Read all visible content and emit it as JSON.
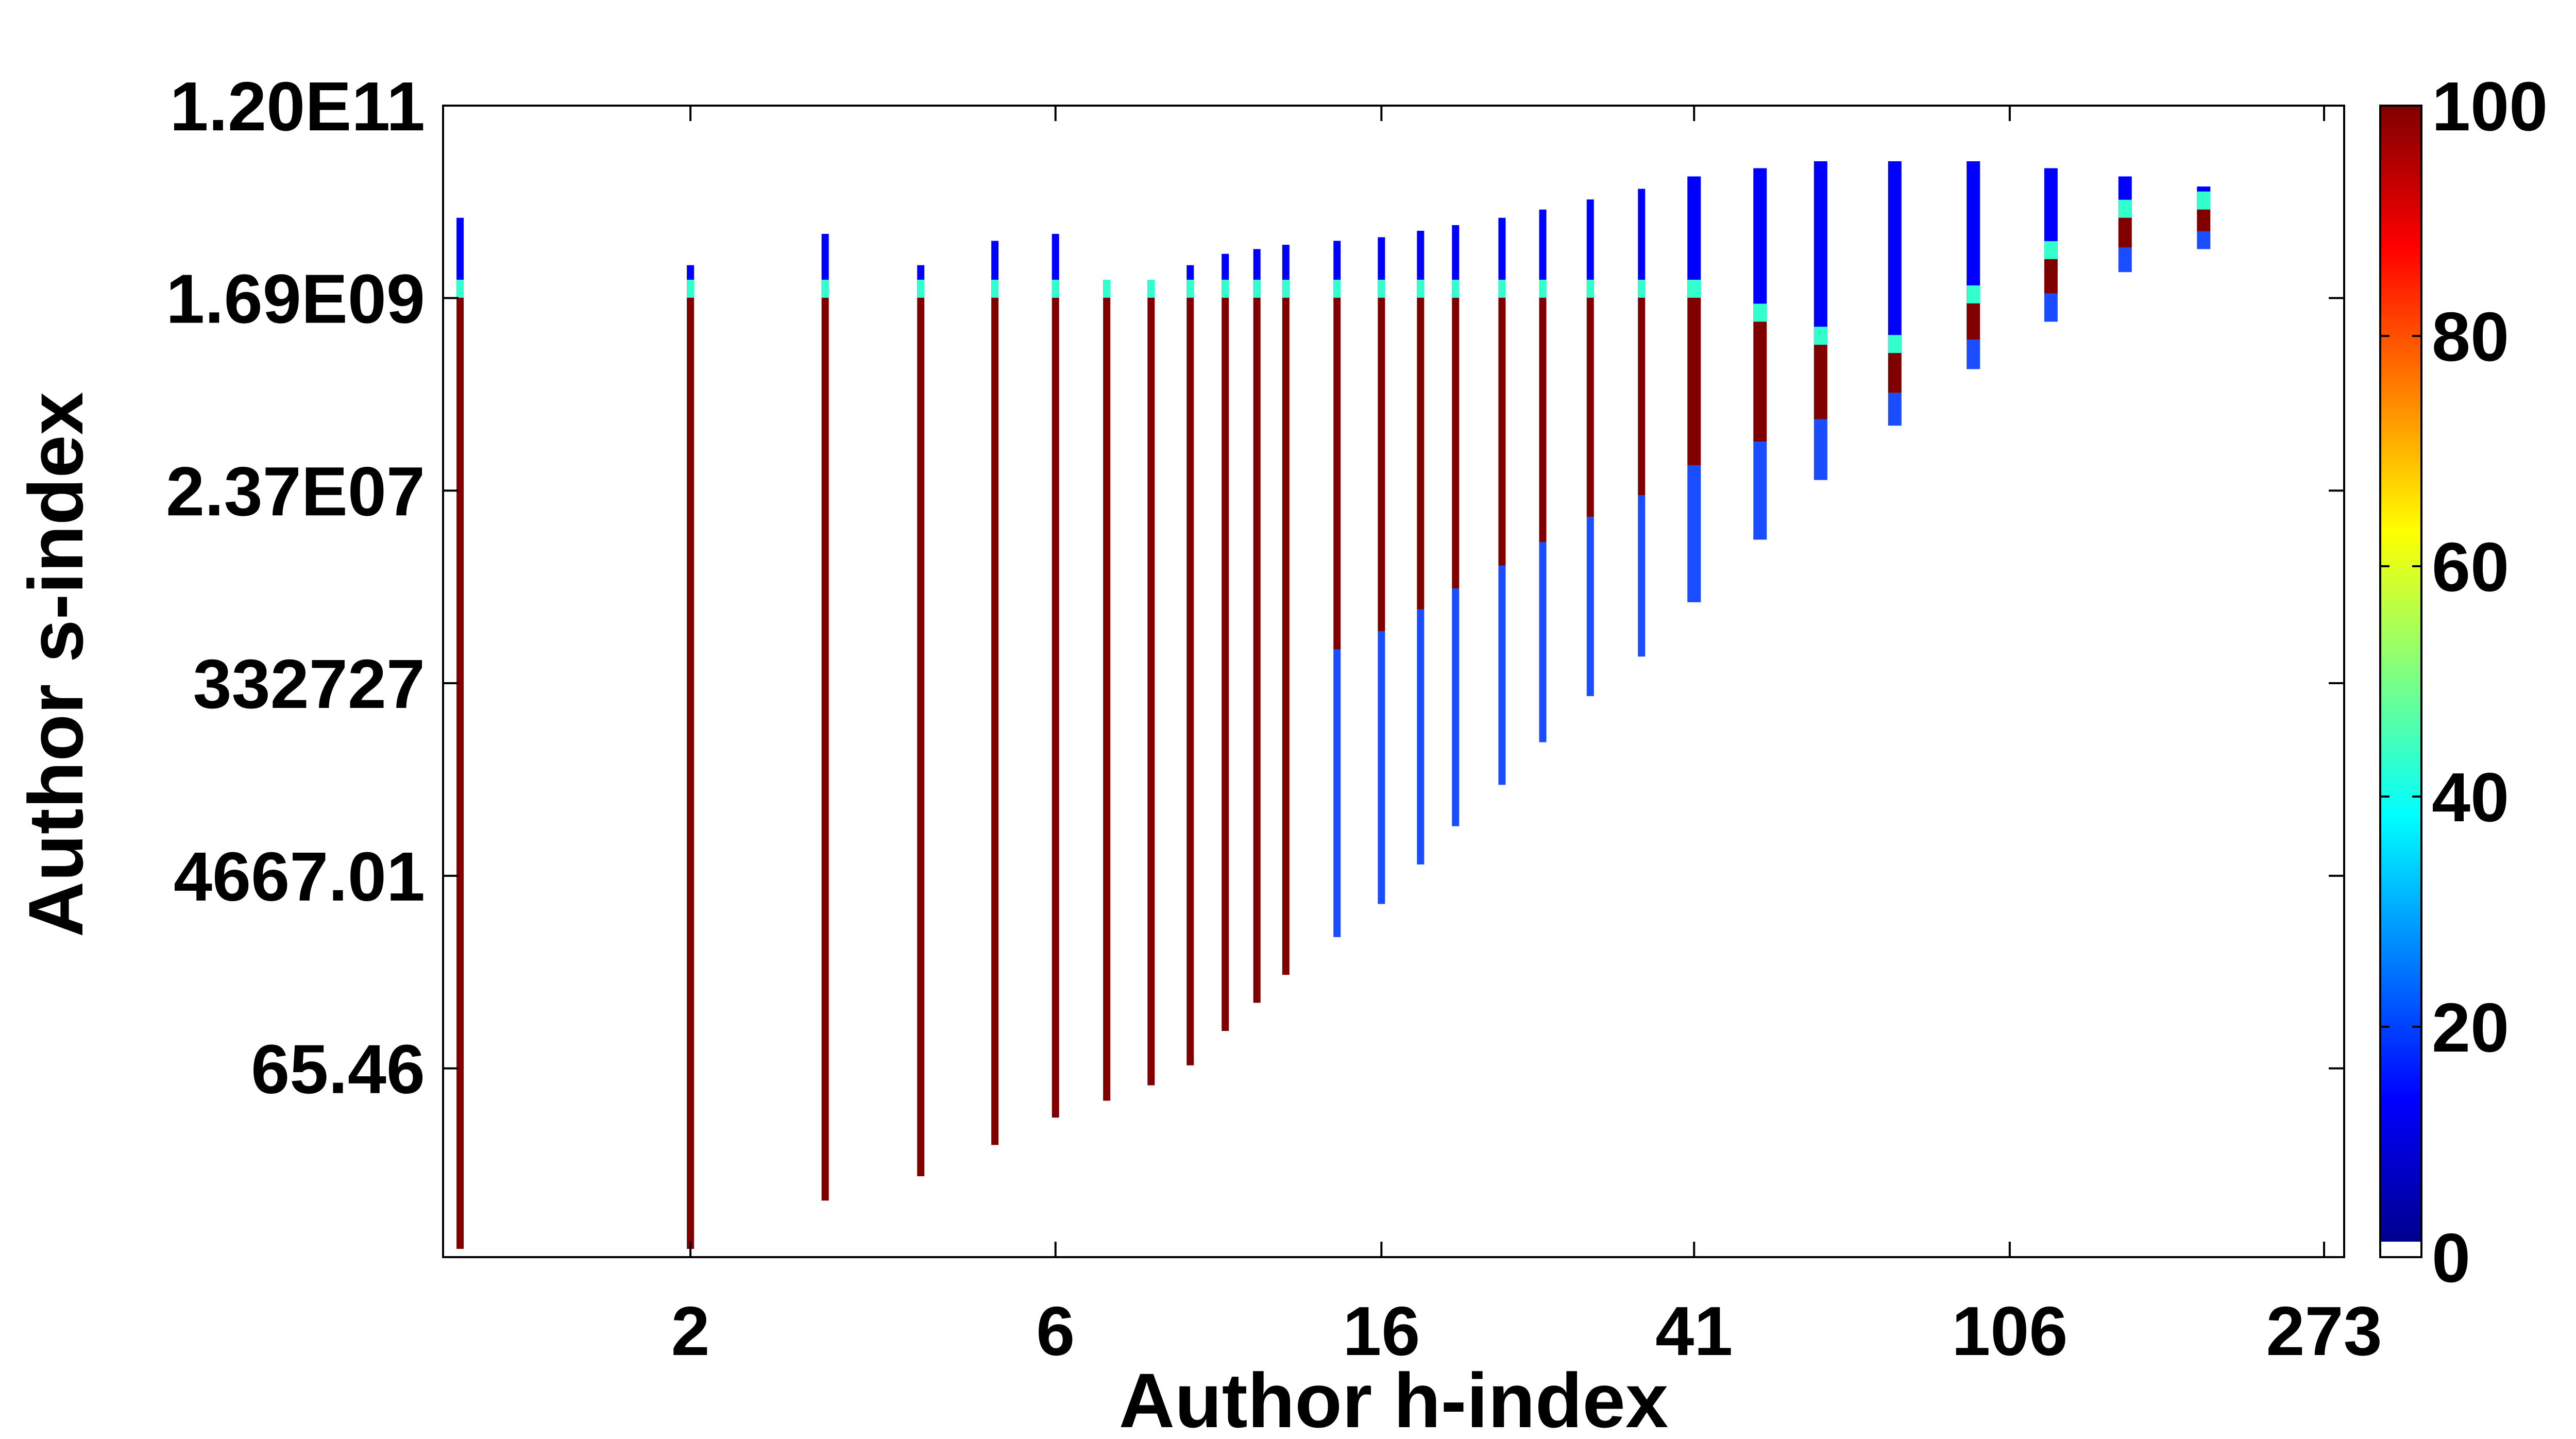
{
  "chart_data": {
    "type": "heatmap",
    "title": "",
    "xlabel": "Author h-index",
    "ylabel": "Author s-index",
    "x_scale": "log",
    "y_scale": "log",
    "x_ticks": [
      "2",
      "6",
      "16",
      "41",
      "106",
      "273"
    ],
    "y_ticks": [
      "1.20E11",
      "1.69E09",
      "2.37E07",
      "332727",
      "4667.01",
      "65.46"
    ],
    "colorbar": {
      "colormap": "jet",
      "min": 0,
      "max": 100,
      "ticks": [
        "100",
        "80",
        "60",
        "40",
        "20",
        "0"
      ],
      "zero_color": "#ffffff"
    },
    "columns": [
      {
        "h": 1,
        "s_min": 1.2,
        "s_dense_top": 1700000000.0,
        "s_max": 10000000000.0
      },
      {
        "h": 2,
        "s_min": 1.2,
        "s_dense_top": 1700000000.0,
        "s_max": 3500000000.0
      },
      {
        "h": 3,
        "s_min": 3.5,
        "s_dense_top": 1700000000.0,
        "s_max": 7000000000.0
      },
      {
        "h": 4,
        "s_min": 6,
        "s_dense_top": 1700000000.0,
        "s_max": 3500000000.0
      },
      {
        "h": 5,
        "s_min": 12,
        "s_dense_top": 1700000000.0,
        "s_max": 6000000000.0
      },
      {
        "h": 6,
        "s_min": 22,
        "s_dense_top": 1700000000.0,
        "s_max": 7000000000.0
      },
      {
        "h": 7,
        "s_min": 32,
        "s_dense_top": 1700000000.0,
        "s_max": 2500000000.0
      },
      {
        "h": 8,
        "s_min": 45,
        "s_dense_top": 1700000000.0,
        "s_max": 2500000000.0
      },
      {
        "h": 9,
        "s_min": 70,
        "s_dense_top": 1700000000.0,
        "s_max": 3500000000.0
      },
      {
        "h": 10,
        "s_min": 150,
        "s_dense_top": 1700000000.0,
        "s_max": 4500000000.0
      },
      {
        "h": 11,
        "s_min": 280,
        "s_dense_top": 1700000000.0,
        "s_max": 5000000000.0
      },
      {
        "h": 12,
        "s_min": 520,
        "s_dense_top": 1700000000.0,
        "s_max": 5500000000.0
      },
      {
        "h": 14,
        "s_min": 1200,
        "s_dense_top": 1700000000.0,
        "s_max": 6000000000.0
      },
      {
        "h": 16,
        "s_min": 2500,
        "s_dense_top": 1700000000.0,
        "s_max": 6500000000.0
      },
      {
        "h": 18,
        "s_min": 6000,
        "s_dense_top": 1700000000.0,
        "s_max": 7500000000.0
      },
      {
        "h": 20,
        "s_min": 14000,
        "s_dense_top": 1700000000.0,
        "s_max": 8500000000.0
      },
      {
        "h": 23,
        "s_min": 35000,
        "s_dense_top": 1700000000.0,
        "s_max": 10000000000.0
      },
      {
        "h": 26,
        "s_min": 90000,
        "s_dense_top": 1700000000.0,
        "s_max": 12000000000.0
      },
      {
        "h": 30,
        "s_min": 250000,
        "s_dense_top": 1700000000.0,
        "s_max": 15000000000.0
      },
      {
        "h": 35,
        "s_min": 600000,
        "s_dense_top": 1700000000.0,
        "s_max": 19000000000.0
      },
      {
        "h": 41,
        "s_min": 2000000.0,
        "s_dense_top": 1700000000.0,
        "s_max": 25000000000.0
      },
      {
        "h": 50,
        "s_min": 8000000.0,
        "s_dense_top": 1000000000.0,
        "s_max": 30000000000.0
      },
      {
        "h": 60,
        "s_min": 30000000.0,
        "s_dense_top": 600000000.0,
        "s_max": 35000000000.0
      },
      {
        "h": 75,
        "s_min": 100000000.0,
        "s_dense_top": 500000000.0,
        "s_max": 35000000000.0
      },
      {
        "h": 95,
        "s_min": 350000000.0,
        "s_dense_top": 1500000000.0,
        "s_max": 35000000000.0
      },
      {
        "h": 120,
        "s_min": 1000000000.0,
        "s_dense_top": 4000000000.0,
        "s_max": 30000000000.0
      },
      {
        "h": 150,
        "s_min": 3000000000.0,
        "s_dense_top": 10000000000.0,
        "s_max": 25000000000.0
      },
      {
        "h": 190,
        "s_min": 5000000000.0,
        "s_dense_top": 12000000000.0,
        "s_max": 20000000000.0
      }
    ]
  }
}
